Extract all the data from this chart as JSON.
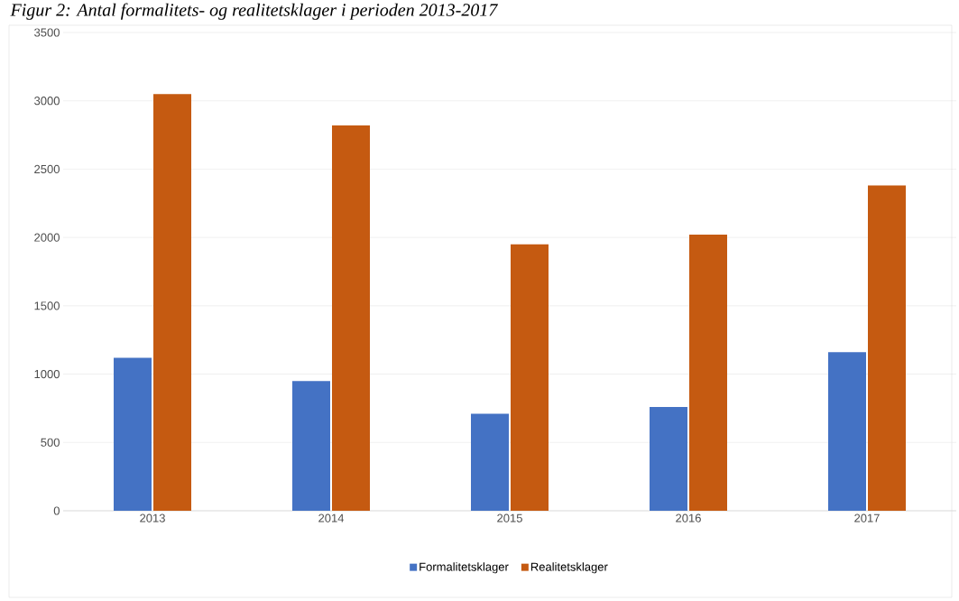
{
  "chart_data": {
    "type": "bar",
    "title": "Figur 2: Antal formalitets- og realitetsklager i perioden 2013-2017",
    "categories": [
      "2013",
      "2014",
      "2015",
      "2016",
      "2017"
    ],
    "series": [
      {
        "name": "Formalitetsklager",
        "color": "#4472c4",
        "values": [
          1120,
          950,
          710,
          760,
          1160
        ]
      },
      {
        "name": "Realitetsklager",
        "color": "#c55a11",
        "values": [
          3050,
          2820,
          1950,
          2020,
          2380
        ]
      }
    ],
    "ylim": [
      0,
      3500
    ],
    "yticks": [
      0,
      500,
      1000,
      1500,
      2000,
      2500,
      3000,
      3500
    ],
    "grid": "y",
    "legend": "bottom"
  }
}
